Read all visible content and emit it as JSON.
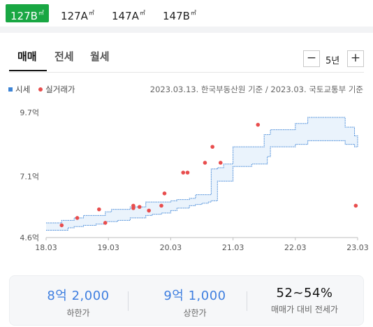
{
  "size_tabs": [
    {
      "label": "127B",
      "unit": "㎡",
      "active": true
    },
    {
      "label": "127A",
      "unit": "㎡",
      "active": false
    },
    {
      "label": "147A",
      "unit": "㎡",
      "active": false
    },
    {
      "label": "147B",
      "unit": "㎡",
      "active": false
    }
  ],
  "sub_tabs": [
    {
      "label": "매매",
      "active": true
    },
    {
      "label": "전세",
      "active": false
    },
    {
      "label": "월세",
      "active": false
    }
  ],
  "period": {
    "minus": "−",
    "value": "5년",
    "plus": "+"
  },
  "legend": {
    "market_price": "시세",
    "actual_trade": "실거래가"
  },
  "source_note": "2023.03.13. 한국부동산원 기준 / 2023.03. 국토교통부 기준",
  "colors": {
    "accent_green": "#19a743",
    "series_blue": "#3d84d6",
    "trade_red": "#e84d4d",
    "value_blue": "#3f7fe0"
  },
  "chart_data": {
    "type": "area",
    "x_ticks": [
      "18.03",
      "19.03",
      "20.03",
      "21.03",
      "22.03",
      "23.03"
    ],
    "y_ticks": [
      "9.7억",
      "7.1억",
      "4.6억"
    ],
    "y_tick_values": [
      9.7,
      7.1,
      4.6
    ],
    "ylim": [
      4.6,
      9.7
    ],
    "xlim": [
      2018.0,
      2023.0
    ],
    "series": [
      {
        "name": "시세",
        "kind": "band",
        "x": [
          2018.0,
          2018.25,
          2018.35,
          2018.45,
          2018.6,
          2018.7,
          2018.8,
          2018.95,
          2019.05,
          2019.15,
          2019.35,
          2019.5,
          2019.6,
          2019.7,
          2019.85,
          2020.0,
          2020.1,
          2020.2,
          2020.3,
          2020.4,
          2020.5,
          2020.6,
          2020.65,
          2020.75,
          2020.85,
          2021.0,
          2021.3,
          2021.45,
          2021.5,
          2021.55,
          2021.6,
          2021.75,
          2022.0,
          2022.2,
          2022.6,
          2022.8,
          2022.9,
          2022.95,
          2023.0
        ],
        "upper": [
          5.2,
          5.3,
          5.3,
          5.4,
          5.5,
          5.5,
          5.5,
          5.65,
          5.75,
          5.75,
          5.85,
          5.85,
          6.05,
          6.05,
          6.05,
          6.1,
          6.15,
          6.15,
          6.2,
          6.35,
          6.35,
          6.35,
          7.4,
          7.45,
          7.6,
          8.3,
          8.3,
          8.3,
          8.8,
          8.8,
          9.0,
          9.0,
          9.25,
          9.5,
          9.5,
          9.1,
          9.1,
          8.75,
          8.3
        ],
        "lower": [
          4.9,
          4.9,
          5.0,
          5.05,
          5.1,
          5.1,
          5.15,
          5.25,
          5.25,
          5.3,
          5.4,
          5.4,
          5.5,
          5.55,
          5.6,
          5.7,
          5.8,
          5.8,
          5.9,
          5.95,
          6.0,
          6.05,
          6.1,
          6.9,
          6.9,
          7.5,
          7.6,
          7.6,
          7.6,
          7.9,
          8.3,
          8.3,
          8.4,
          8.55,
          8.55,
          8.4,
          8.4,
          8.3,
          8.3
        ]
      },
      {
        "name": "실거래가",
        "kind": "scatter",
        "x": [
          2018.25,
          2018.5,
          2018.85,
          2018.95,
          2019.4,
          2019.4,
          2019.5,
          2019.65,
          2019.85,
          2019.9,
          2020.2,
          2020.27,
          2020.55,
          2020.67,
          2020.8,
          2021.4,
          2022.97
        ],
        "y": [
          5.1,
          5.4,
          5.75,
          5.2,
          5.8,
          5.9,
          5.85,
          5.7,
          5.9,
          6.4,
          7.25,
          7.25,
          7.65,
          8.3,
          7.65,
          9.2,
          5.9
        ]
      }
    ]
  },
  "summary": [
    {
      "value": "8억 2,000",
      "label": "하한가"
    },
    {
      "value": "9억 1,000",
      "label": "상한가"
    },
    {
      "value": "52~54%",
      "label": "매매가 대비 전세가"
    }
  ]
}
